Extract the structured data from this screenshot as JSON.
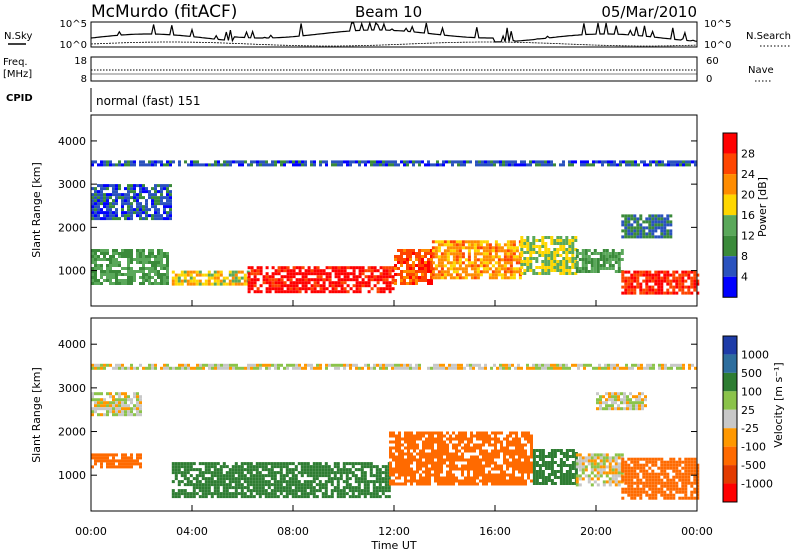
{
  "header": {
    "station": "McMurdo (fitACF)",
    "beam": "Beam 10",
    "date": "05/Mar/2010"
  },
  "top_panels": {
    "nsky_label": "N.Sky",
    "nsearch_label": "N.Search",
    "noise_ticks_left": [
      "10^5",
      "10^0"
    ],
    "noise_ticks_right": [
      "10^5",
      "10^0"
    ],
    "freq_label_line1": "Freq.",
    "freq_label_line2": "[MHz]",
    "freq_ticks": [
      "18",
      "8"
    ],
    "nave_label": "Nave",
    "nave_ticks": [
      "60",
      "0"
    ],
    "cpid_label": "CPID",
    "cpid_value": "normal (fast) 151"
  },
  "colors": {
    "power_scale": [
      "#0000ff",
      "#2a52be",
      "#3a8a3a",
      "#5aa85a",
      "#ffd700",
      "#ff8c00",
      "#ff4500",
      "#ff0000"
    ],
    "velocity_scale": [
      "#1e3ca8",
      "#2e6e9e",
      "#2e7d32",
      "#8bc34a",
      "#c8c8c8",
      "#ff9800",
      "#ff6a00",
      "#e23b00",
      "#ff0000"
    ]
  },
  "chart_data": [
    {
      "type": "heatmap",
      "name": "power",
      "ylabel": "Slant Range [km]",
      "yticks": [
        "1000",
        "2000",
        "3000",
        "4000"
      ],
      "ylim": [
        180,
        4600
      ],
      "colorbar_label": "Power [dB]",
      "colorbar_ticks": [
        "28",
        "24",
        "20",
        "16",
        "12",
        "8",
        "4"
      ],
      "clim": [
        0,
        32
      ],
      "bands": [
        {
          "t0": 0.0,
          "t1": 3.2,
          "r0": 2200,
          "r1": 3000,
          "value": 6
        },
        {
          "t0": 0.0,
          "t1": 3.0,
          "r0": 700,
          "r1": 1500,
          "value": 12
        },
        {
          "t0": 3.2,
          "t1": 6.2,
          "r0": 700,
          "r1": 1000,
          "value": 18
        },
        {
          "t0": 6.2,
          "t1": 12.0,
          "r0": 500,
          "r1": 1100,
          "value": 30
        },
        {
          "t0": 12.0,
          "t1": 13.5,
          "r0": 700,
          "r1": 1500,
          "value": 26
        },
        {
          "t0": 13.5,
          "t1": 17.0,
          "r0": 800,
          "r1": 1700,
          "value": 22
        },
        {
          "t0": 17.0,
          "t1": 19.2,
          "r0": 900,
          "r1": 1800,
          "value": 16
        },
        {
          "t0": 19.2,
          "t1": 21.0,
          "r0": 1000,
          "r1": 1500,
          "value": 12
        },
        {
          "t0": 21.0,
          "t1": 24.0,
          "r0": 500,
          "r1": 1000,
          "value": 28
        },
        {
          "t0": 21.0,
          "t1": 23.0,
          "r0": 1800,
          "r1": 2300,
          "value": 8
        },
        {
          "t0": 0.0,
          "t1": 24.0,
          "r0": 3450,
          "r1": 3550,
          "value": 6
        }
      ]
    },
    {
      "type": "heatmap",
      "name": "velocity",
      "ylabel": "Slant Range [km]",
      "yticks": [
        "1000",
        "2000",
        "3000",
        "4000"
      ],
      "ylim": [
        180,
        4600
      ],
      "xlabel": "Time UT",
      "xticks": [
        "00:00",
        "04:00",
        "08:00",
        "12:00",
        "16:00",
        "20:00",
        "00:00"
      ],
      "xlim": [
        0,
        24
      ],
      "colorbar_label": "Velocity [m s⁻¹]",
      "colorbar_ticks": [
        "1000",
        "500",
        "100",
        "25",
        "-25",
        "-100",
        "-500",
        "-1000"
      ],
      "bands": [
        {
          "t0": 0.0,
          "t1": 2.0,
          "r0": 2400,
          "r1": 2900,
          "value": 0
        },
        {
          "t0": 0.0,
          "t1": 2.0,
          "r0": 1200,
          "r1": 1500,
          "value": -300
        },
        {
          "t0": 3.2,
          "t1": 11.8,
          "r0": 500,
          "r1": 1300,
          "value": 300
        },
        {
          "t0": 11.8,
          "t1": 17.5,
          "r0": 800,
          "r1": 2000,
          "value": -300
        },
        {
          "t0": 17.5,
          "t1": 19.2,
          "r0": 800,
          "r1": 1600,
          "value": 200
        },
        {
          "t0": 19.2,
          "t1": 21.0,
          "r0": 800,
          "r1": 1500,
          "value": 0
        },
        {
          "t0": 21.0,
          "t1": 24.0,
          "r0": 500,
          "r1": 1400,
          "value": -300
        },
        {
          "t0": 20.0,
          "t1": 22.0,
          "r0": 2500,
          "r1": 2900,
          "value": 0
        },
        {
          "t0": 0.0,
          "t1": 24.0,
          "r0": 3450,
          "r1": 3550,
          "value": 0
        }
      ]
    }
  ]
}
